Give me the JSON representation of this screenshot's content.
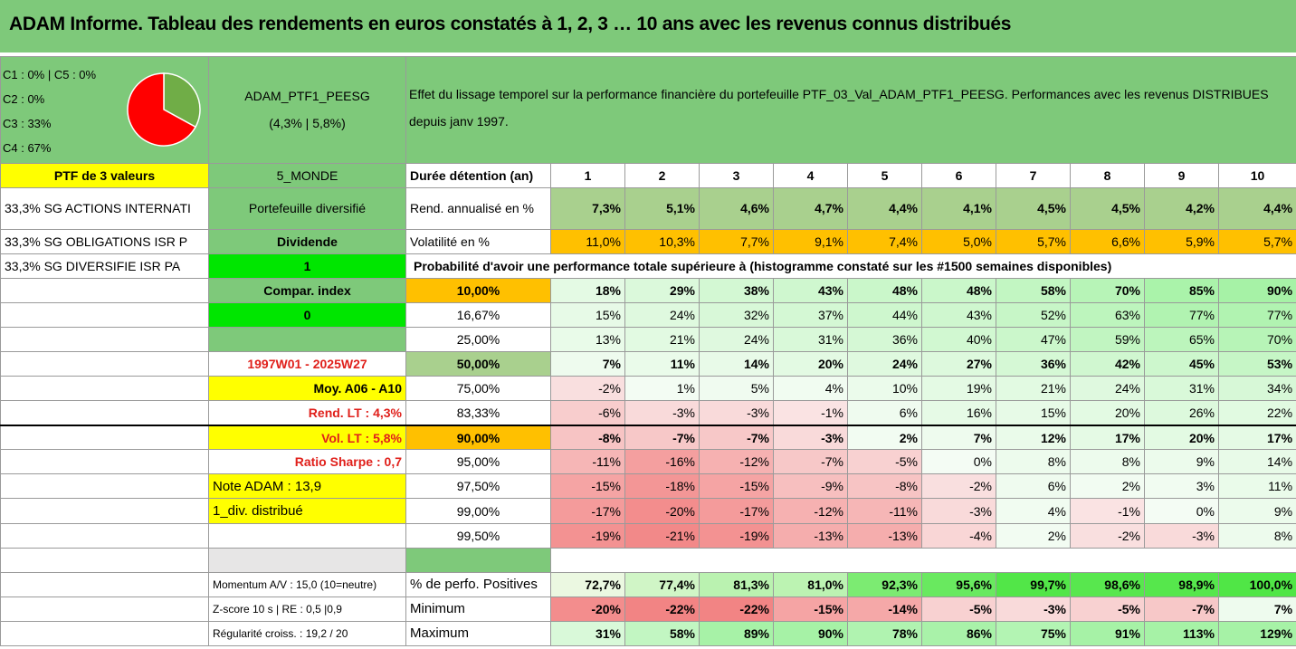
{
  "title": "ADAM Informe. Tableau des rendements en euros constatés à 1, 2, 3 … 10 ans avec les revenus connus distribués",
  "colors": {
    "green": "#7ec97a",
    "yellow": "#ffff00",
    "orange": "#ffc000",
    "bright_green": "#00e600",
    "red_text": "#e0201b"
  },
  "pie": {
    "legend": [
      "C1 : 0% | C5 : 0%",
      "C2 : 0%",
      "C3 : 33%",
      "C4 : 67%"
    ],
    "slices": [
      {
        "label": "C3",
        "value": 33,
        "color": "#70ad47"
      },
      {
        "label": "C4",
        "value": 67,
        "color": "#ff0000"
      }
    ]
  },
  "portfolio": {
    "name": "ADAM_PTF1_PEESG",
    "sub": "(4,3% | 5,8%)"
  },
  "description": "Effet du lissage temporel sur la performance financière du portefeuille PTF_03_Val_ADAM_PTF1_PEESG. Performances avec les revenus DISTRIBUES depuis janv 1997.",
  "left_col": [
    "PTF de 3 valeurs",
    "33,3% SG ACTIONS INTERNATI",
    "33,3% SG OBLIGATIONS ISR P",
    "33,3% SG DIVERSIFIE ISR PA"
  ],
  "mid_col": {
    "monde": "5_MONDE",
    "diversifie": "Portefeuille diversifié",
    "dividende": "Dividende",
    "one": "1",
    "compar": "Compar. index",
    "zero": "0",
    "period": "1997W01 - 2025W27",
    "moy": "Moy. A06 - A10",
    "rend_lt": "Rend. LT : 4,3%",
    "vol_lt": "Vol. LT : 5,8%",
    "sharpe": "Ratio Sharpe : 0,7",
    "note": "Note ADAM : 13,9",
    "div": "1_div. distribué"
  },
  "header": {
    "label": "Durée détention (an)",
    "years": [
      "1",
      "2",
      "3",
      "4",
      "5",
      "6",
      "7",
      "8",
      "9",
      "10"
    ]
  },
  "rend": {
    "label": "Rend. annualisé en %",
    "values": [
      "7,3%",
      "5,1%",
      "4,6%",
      "4,7%",
      "4,4%",
      "4,1%",
      "4,5%",
      "4,5%",
      "4,2%",
      "4,4%"
    ]
  },
  "vol": {
    "label": "Volatilité en %",
    "values": [
      "11,0%",
      "10,3%",
      "7,7%",
      "9,1%",
      "7,4%",
      "5,0%",
      "5,7%",
      "6,6%",
      "5,9%",
      "5,7%"
    ]
  },
  "proba_title": "Probabilité d'avoir une performance totale supérieure à (histogramme constaté sur les #1500 semaines disponibles)",
  "proba": [
    {
      "pct": "10,00%",
      "bold": true,
      "values": [
        "18%",
        "29%",
        "38%",
        "43%",
        "48%",
        "48%",
        "58%",
        "70%",
        "85%",
        "90%"
      ]
    },
    {
      "pct": "16,67%",
      "bold": false,
      "values": [
        "15%",
        "24%",
        "32%",
        "37%",
        "44%",
        "43%",
        "52%",
        "63%",
        "77%",
        "77%"
      ]
    },
    {
      "pct": "25,00%",
      "bold": false,
      "values": [
        "13%",
        "21%",
        "24%",
        "31%",
        "36%",
        "40%",
        "47%",
        "59%",
        "65%",
        "70%"
      ]
    },
    {
      "pct": "50,00%",
      "bold": true,
      "values": [
        "7%",
        "11%",
        "14%",
        "20%",
        "24%",
        "27%",
        "36%",
        "42%",
        "45%",
        "53%"
      ]
    },
    {
      "pct": "75,00%",
      "bold": false,
      "values": [
        "-2%",
        "1%",
        "5%",
        "4%",
        "10%",
        "19%",
        "21%",
        "24%",
        "31%",
        "34%"
      ]
    },
    {
      "pct": "83,33%",
      "bold": false,
      "values": [
        "-6%",
        "-3%",
        "-3%",
        "-1%",
        "6%",
        "16%",
        "15%",
        "20%",
        "26%",
        "22%"
      ]
    },
    {
      "pct": "90,00%",
      "bold": true,
      "values": [
        "-8%",
        "-7%",
        "-7%",
        "-3%",
        "2%",
        "7%",
        "12%",
        "17%",
        "20%",
        "17%"
      ]
    },
    {
      "pct": "95,00%",
      "bold": false,
      "values": [
        "-11%",
        "-16%",
        "-12%",
        "-7%",
        "-5%",
        "0%",
        "8%",
        "8%",
        "9%",
        "14%"
      ]
    },
    {
      "pct": "97,50%",
      "bold": false,
      "values": [
        "-15%",
        "-18%",
        "-15%",
        "-9%",
        "-8%",
        "-2%",
        "6%",
        "2%",
        "3%",
        "11%"
      ]
    },
    {
      "pct": "99,00%",
      "bold": false,
      "values": [
        "-17%",
        "-20%",
        "-17%",
        "-12%",
        "-11%",
        "-3%",
        "4%",
        "-1%",
        "0%",
        "9%"
      ]
    },
    {
      "pct": "99,50%",
      "bold": false,
      "values": [
        "-19%",
        "-21%",
        "-19%",
        "-13%",
        "-13%",
        "-4%",
        "2%",
        "-2%",
        "-3%",
        "8%"
      ]
    }
  ],
  "bottom": [
    {
      "left": "Momentum A/V : 15,0 (10=neutre)",
      "label": "% de perfo. Positives",
      "values": [
        "72,7%",
        "77,4%",
        "81,3%",
        "81,0%",
        "92,3%",
        "95,6%",
        "99,7%",
        "98,6%",
        "98,9%",
        "100,0%"
      ]
    },
    {
      "left": "Z-score 10 s | RE : 0,5 |0,9",
      "label": "Minimum",
      "values": [
        "-20%",
        "-22%",
        "-22%",
        "-15%",
        "-14%",
        "-5%",
        "-3%",
        "-5%",
        "-7%",
        "7%"
      ]
    },
    {
      "left": "Régularité croiss. : 19,2 / 20",
      "label": "Maximum",
      "values": [
        "31%",
        "58%",
        "89%",
        "90%",
        "78%",
        "86%",
        "75%",
        "91%",
        "113%",
        "129%"
      ]
    }
  ]
}
